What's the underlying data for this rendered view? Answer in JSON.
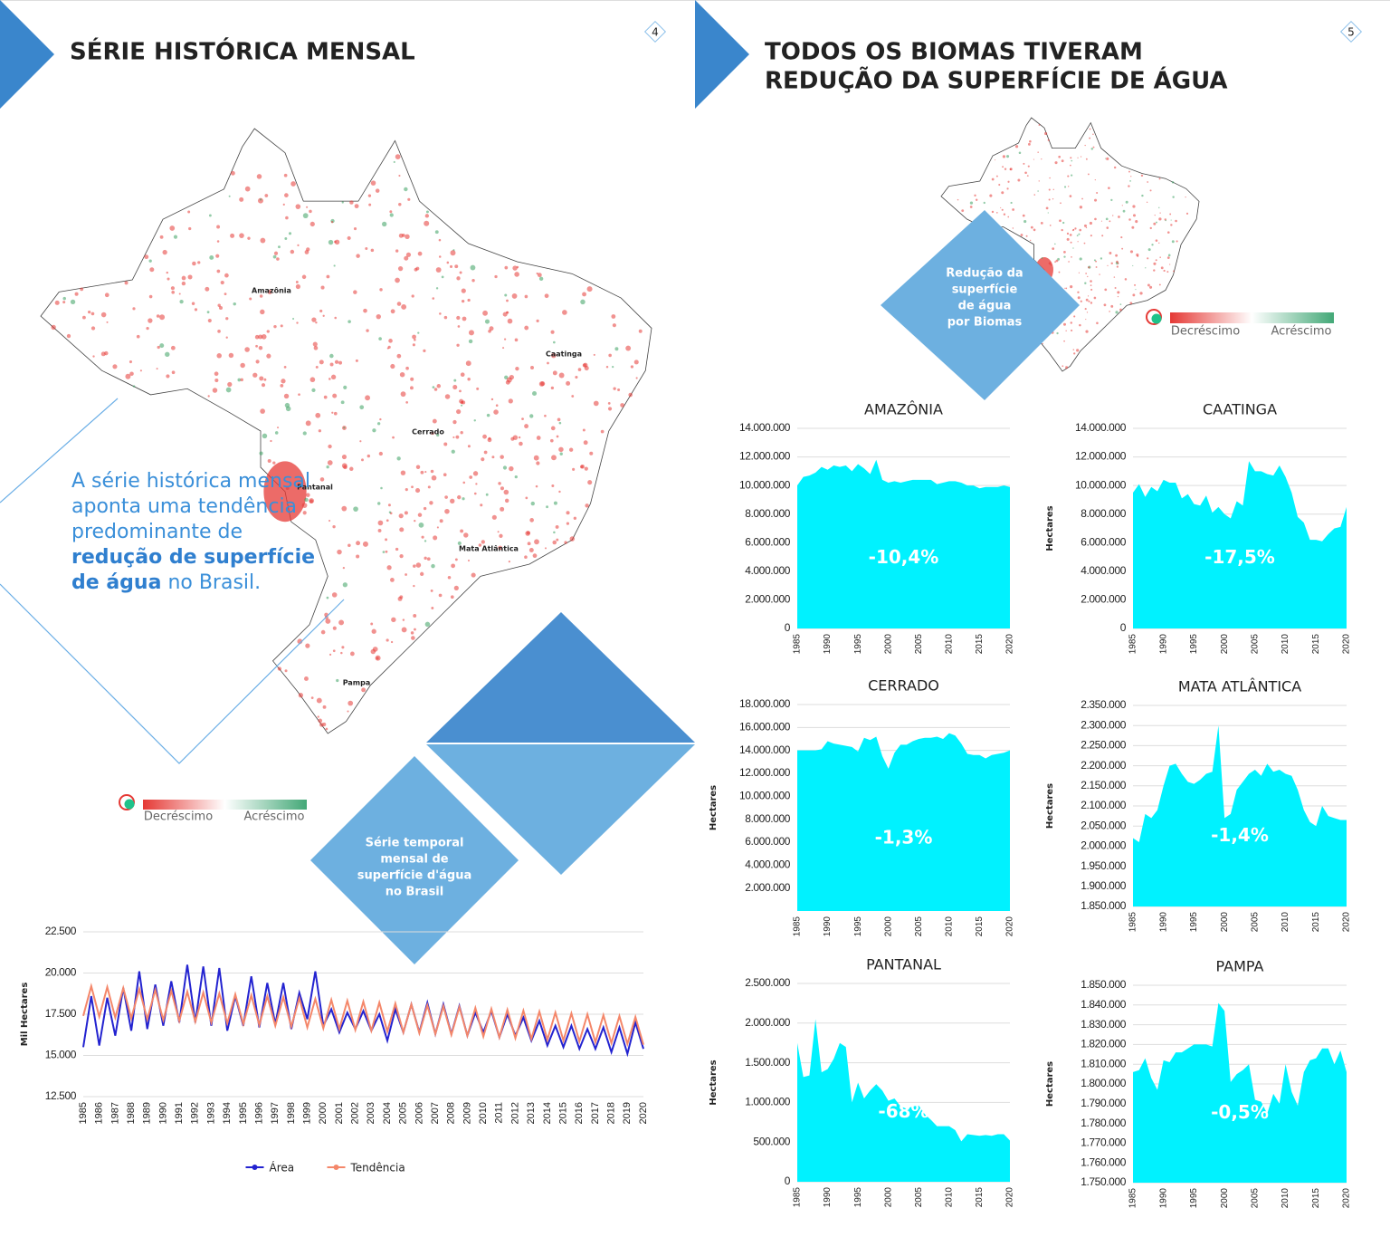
{
  "left_page": {
    "page_number": "4",
    "title": "SÉRIE HISTÓRICA MENSAL",
    "paragraph": [
      "A série histórica mensal aponta uma tendência predominante de",
      "redução de superfície de água",
      "no Brasil."
    ],
    "map_labels": [
      "Amazônia",
      "Caatinga",
      "Cerrado",
      "Pantanal",
      "Mata Atlântica",
      "Pampa"
    ],
    "legend": [
      "Decréscimo",
      "Acréscimo"
    ],
    "diamond_label": [
      "Série temporal",
      "mensal de",
      "superfície d'água",
      "no Brasil"
    ]
  },
  "right_page": {
    "page_number": "5",
    "title": [
      "TODOS OS BIOMAS TIVERAM",
      "REDUÇÃO DA SUPERFÍCIE DE ÁGUA"
    ],
    "diamond_label": [
      "Redução da",
      "superfície",
      "de água",
      "por Biomas"
    ],
    "legend": [
      "Decréscimo",
      "Acréscimo"
    ]
  },
  "chart_data": [
    {
      "type": "line",
      "y_label": "Mil Hectares",
      "categories": [
        "1985",
        null,
        "1986",
        null,
        "1987",
        null,
        "1988",
        null,
        "1989",
        null,
        "1990",
        null,
        "1991",
        null,
        "1992",
        null,
        "1993",
        null,
        "1994",
        null,
        "1995",
        null,
        "1996",
        null,
        "1997",
        null,
        "1998",
        null,
        "1999",
        null,
        "2000",
        null,
        "2001",
        null,
        "2002",
        null,
        "2003",
        null,
        "2004",
        null,
        "2005",
        null,
        "2006",
        null,
        "2007",
        null,
        "2008",
        null,
        "2009",
        null,
        "2010",
        null,
        "2011",
        null,
        "2012",
        null,
        "2013",
        null,
        "2014",
        null,
        "2015",
        null,
        "2016",
        null,
        "2017",
        null,
        "2018",
        null,
        "2019",
        null,
        "2020"
      ],
      "series": [
        {
          "name": "Área",
          "color": "#2323d0",
          "values": [
            15500,
            18600,
            15600,
            18500,
            16200,
            19100,
            16500,
            20100,
            16600,
            19300,
            16800,
            19500,
            17000,
            20500,
            17000,
            20400,
            16800,
            20300,
            16500,
            18600,
            16800,
            19800,
            16700,
            19400,
            16900,
            19400,
            16600,
            18800,
            17200,
            20100,
            16800,
            17800,
            16400,
            17600,
            16600,
            17700,
            16500,
            17500,
            15900,
            17800,
            16400,
            18100,
            16400,
            18200,
            16300,
            18100,
            16300,
            18000,
            16200,
            17600,
            16400,
            17700,
            16100,
            17500,
            16200,
            17300,
            15900,
            17100,
            15600,
            16800,
            15500,
            16800,
            15400,
            16600,
            15400,
            16700,
            15200,
            16700,
            15100,
            17000,
            15400
          ]
        },
        {
          "name": "Tendência",
          "color": "#f4876a",
          "values": [
            17400,
            19200,
            17350,
            19145,
            17300,
            19090,
            17250,
            19035,
            17200,
            18980,
            17150,
            18925,
            17100,
            18870,
            17050,
            18815,
            17000,
            18760,
            16950,
            18705,
            16900,
            18650,
            16850,
            18595,
            16800,
            18540,
            16750,
            18485,
            16700,
            18430,
            16650,
            18375,
            16600,
            18320,
            16550,
            18265,
            16500,
            18210,
            16450,
            18155,
            16400,
            18100,
            16350,
            18045,
            16300,
            17990,
            16250,
            17935,
            16200,
            17880,
            16150,
            17825,
            16100,
            17770,
            16050,
            17715,
            16000,
            17660,
            15950,
            17605,
            15900,
            17550,
            15850,
            17495,
            15800,
            17440,
            15750,
            17385,
            15700,
            17330,
            15650
          ]
        }
      ],
      "ylim": [
        12500,
        22500
      ],
      "yticks": [
        {
          "value": 12500,
          "label": "12.500"
        },
        {
          "value": 15000,
          "label": "15.000"
        },
        {
          "value": 17500,
          "label": "17.500"
        },
        {
          "value": 20000,
          "label": "20.000"
        },
        {
          "value": 22500,
          "label": "22.500"
        }
      ],
      "grid": true,
      "legend": "bottom"
    },
    {
      "type": "area",
      "title": "AMAZÔNIA",
      "annotation": "-10,4%",
      "color": "#00f2ff",
      "grid": true,
      "categories": [
        "1985",
        null,
        null,
        null,
        null,
        "1990",
        null,
        null,
        null,
        null,
        "1995",
        null,
        null,
        null,
        null,
        "2000",
        null,
        null,
        null,
        null,
        "2005",
        null,
        null,
        null,
        null,
        "2010",
        null,
        null,
        null,
        null,
        "2015",
        null,
        null,
        null,
        null,
        "2020"
      ],
      "values": [
        10000000,
        10600000,
        10700000,
        10900000,
        11300000,
        11100000,
        11400000,
        11300000,
        11400000,
        11000000,
        11500000,
        11200000,
        10800000,
        11800000,
        10400000,
        10200000,
        10300000,
        10200000,
        10300000,
        10400000,
        10400000,
        10400000,
        10400000,
        10100000,
        10200000,
        10300000,
        10300000,
        10200000,
        10000000,
        10000000,
        9800000,
        9900000,
        9900000,
        9900000,
        10000000,
        9900000
      ],
      "ylim": [
        0,
        14000000
      ],
      "yticks": [
        0,
        {
          "value": 2000000,
          "label": "2.000.000"
        },
        {
          "value": 4000000,
          "label": "4.000.000"
        },
        {
          "value": 6000000,
          "label": "6.000.000"
        },
        {
          "value": 8000000,
          "label": "8.000.000"
        },
        {
          "value": 10000000,
          "label": "10.000.000"
        },
        {
          "value": 12000000,
          "label": "12.000.000"
        },
        {
          "value": 14000000,
          "label": "14.000.000"
        }
      ]
    },
    {
      "type": "area",
      "title": "CAATINGA",
      "annotation": "-17,5%",
      "y_label": "Hectares",
      "color": "#00f2ff",
      "grid": true,
      "categories": [
        "1985",
        null,
        null,
        null,
        null,
        "1990",
        null,
        null,
        null,
        null,
        "1995",
        null,
        null,
        null,
        null,
        "2000",
        null,
        null,
        null,
        null,
        "2005",
        null,
        null,
        null,
        null,
        "2010",
        null,
        null,
        null,
        null,
        "2015",
        null,
        null,
        null,
        null,
        "2020"
      ],
      "values": [
        9500000,
        10100000,
        9200000,
        9900000,
        9600000,
        10400000,
        10200000,
        10200000,
        9100000,
        9400000,
        8700000,
        8600000,
        9300000,
        8100000,
        8500000,
        8000000,
        7700000,
        8900000,
        8600000,
        11700000,
        11000000,
        11000000,
        10800000,
        10700000,
        11400000,
        10600000,
        9500000,
        7800000,
        7400000,
        6200000,
        6200000,
        6100000,
        6600000,
        7000000,
        7100000,
        8500000
      ],
      "ylim": [
        0,
        14000000
      ],
      "yticks": [
        0,
        {
          "value": 2000000,
          "label": "2.000.000"
        },
        {
          "value": 4000000,
          "label": "4.000.000"
        },
        {
          "value": 6000000,
          "label": "6.000.000"
        },
        {
          "value": 8000000,
          "label": "8.000.000"
        },
        {
          "value": 10000000,
          "label": "10.000.000"
        },
        {
          "value": 12000000,
          "label": "12.000.000"
        },
        {
          "value": 14000000,
          "label": "14.000.000"
        }
      ]
    },
    {
      "type": "area",
      "title": "CERRADO",
      "annotation": "-1,3%",
      "y_label": "Hectares",
      "color": "#00f2ff",
      "grid": true,
      "categories": [
        "1985",
        null,
        null,
        null,
        null,
        "1990",
        null,
        null,
        null,
        null,
        "1995",
        null,
        null,
        null,
        null,
        "2000",
        null,
        null,
        null,
        null,
        "2005",
        null,
        null,
        null,
        null,
        "2010",
        null,
        null,
        null,
        null,
        "2015",
        null,
        null,
        null,
        null,
        "2020"
      ],
      "values": [
        14000000,
        14000000,
        14000000,
        14000000,
        14100000,
        14800000,
        14600000,
        14500000,
        14400000,
        14300000,
        13900000,
        15100000,
        14900000,
        15200000,
        13500000,
        12400000,
        13800000,
        14500000,
        14500000,
        14800000,
        15000000,
        15100000,
        15100000,
        15200000,
        15000000,
        15500000,
        15300000,
        14600000,
        13700000,
        13600000,
        13600000,
        13300000,
        13600000,
        13700000,
        13800000,
        14000000
      ],
      "ylim": [
        0,
        18000000
      ],
      "yticks": [
        {
          "value": 2000000,
          "label": "2.000.000"
        },
        {
          "value": 4000000,
          "label": "4.000.000"
        },
        {
          "value": 6000000,
          "label": "6.000.000"
        },
        {
          "value": 8000000,
          "label": "8.000.000"
        },
        {
          "value": 10000000,
          "label": "10.000.000"
        },
        {
          "value": 12000000,
          "label": "12.000.000"
        },
        {
          "value": 14000000,
          "label": "14.000.000"
        },
        {
          "value": 16000000,
          "label": "16.000.000"
        },
        {
          "value": 18000000,
          "label": "18.000.000"
        }
      ]
    },
    {
      "type": "area",
      "title": "MATA ATLÂNTICA",
      "annotation": "-1,4%",
      "y_label": "Hectares",
      "color": "#00f2ff",
      "grid": true,
      "categories": [
        "1985",
        null,
        null,
        null,
        null,
        "1990",
        null,
        null,
        null,
        null,
        "1995",
        null,
        null,
        null,
        null,
        "2000",
        null,
        null,
        null,
        null,
        "2005",
        null,
        null,
        null,
        null,
        "2010",
        null,
        null,
        null,
        null,
        "2015",
        null,
        null,
        null,
        null,
        "2020"
      ],
      "values": [
        2020000,
        2010000,
        2080000,
        2070000,
        2090000,
        2150000,
        2200000,
        2205000,
        2180000,
        2160000,
        2155000,
        2165000,
        2180000,
        2185000,
        2300000,
        2070000,
        2080000,
        2140000,
        2160000,
        2180000,
        2190000,
        2175000,
        2205000,
        2185000,
        2190000,
        2180000,
        2175000,
        2140000,
        2090000,
        2060000,
        2050000,
        2100000,
        2075000,
        2070000,
        2065000,
        2065000
      ],
      "ylim": [
        1850000,
        2350000
      ],
      "yticks": [
        {
          "value": 1850000,
          "label": "1.850.000"
        },
        {
          "value": 1900000,
          "label": "1.900.000"
        },
        {
          "value": 1950000,
          "label": "1.950.000"
        },
        {
          "value": 2000000,
          "label": "2.000.000"
        },
        {
          "value": 2050000,
          "label": "2.050.000"
        },
        {
          "value": 2100000,
          "label": "2.100.000"
        },
        {
          "value": 2150000,
          "label": "2.150.000"
        },
        {
          "value": 2200000,
          "label": "2.200.000"
        },
        {
          "value": 2250000,
          "label": "2.250.000"
        },
        {
          "value": 2300000,
          "label": "2.300.000"
        },
        {
          "value": 2350000,
          "label": "2.350.000"
        }
      ]
    },
    {
      "type": "area",
      "title": "PANTANAL",
      "annotation": "-68%",
      "y_label": "Hectares",
      "color": "#00f2ff",
      "grid": true,
      "categories": [
        "1985",
        null,
        null,
        null,
        null,
        "1990",
        null,
        null,
        null,
        null,
        "1995",
        null,
        null,
        null,
        null,
        "2000",
        null,
        null,
        null,
        null,
        "2005",
        null,
        null,
        null,
        null,
        "2010",
        null,
        null,
        null,
        null,
        "2015",
        null,
        null,
        null,
        null,
        "2020"
      ],
      "values": [
        1750000,
        1320000,
        1340000,
        2050000,
        1380000,
        1420000,
        1550000,
        1750000,
        1700000,
        1000000,
        1250000,
        1050000,
        1150000,
        1230000,
        1150000,
        1020000,
        1050000,
        950000,
        920000,
        950000,
        960000,
        850000,
        780000,
        700000,
        700000,
        700000,
        650000,
        510000,
        600000,
        590000,
        580000,
        590000,
        580000,
        600000,
        600000,
        520000
      ],
      "ylim": [
        0,
        2500000
      ],
      "yticks": [
        0,
        {
          "value": 500000,
          "label": "500.000"
        },
        {
          "value": 1000000,
          "label": "1.000.000"
        },
        {
          "value": 1500000,
          "label": "1.500.000"
        },
        {
          "value": 2000000,
          "label": "2.000.000"
        },
        {
          "value": 2500000,
          "label": "2.500.000"
        }
      ]
    },
    {
      "type": "area",
      "title": "PAMPA",
      "annotation": "-0,5%",
      "y_label": "Hectares",
      "color": "#00f2ff",
      "grid": true,
      "categories": [
        "1985",
        null,
        null,
        null,
        null,
        "1990",
        null,
        null,
        null,
        null,
        "1995",
        null,
        null,
        null,
        null,
        "2000",
        null,
        null,
        null,
        null,
        "2005",
        null,
        null,
        null,
        null,
        "2010",
        null,
        null,
        null,
        null,
        "2015",
        null,
        null,
        null,
        null,
        "2020"
      ],
      "values": [
        1806000,
        1807000,
        1813000,
        1803000,
        1797000,
        1812000,
        1811000,
        1816000,
        1816000,
        1818000,
        1820000,
        1820000,
        1820000,
        1819000,
        1841000,
        1837000,
        1801000,
        1805000,
        1807000,
        1810000,
        1792000,
        1791000,
        1785000,
        1795000,
        1790000,
        1810000,
        1796000,
        1789000,
        1806000,
        1812000,
        1813000,
        1818000,
        1818000,
        1810000,
        1817000,
        1806000
      ],
      "ylim": [
        1750000,
        1850000
      ],
      "yticks": [
        {
          "value": 1750000,
          "label": "1.750.000"
        },
        {
          "value": 1760000,
          "label": "1.760.000"
        },
        {
          "value": 1770000,
          "label": "1.770.000"
        },
        {
          "value": 1780000,
          "label": "1.780.000"
        },
        {
          "value": 1790000,
          "label": "1.790.000"
        },
        {
          "value": 1800000,
          "label": "1.800.000"
        },
        {
          "value": 1810000,
          "label": "1.810.000"
        },
        {
          "value": 1820000,
          "label": "1.820.000"
        },
        {
          "value": 1830000,
          "label": "1.830.000"
        },
        {
          "value": 1840000,
          "label": "1.840.000"
        },
        {
          "value": 1850000,
          "label": "1.850.000"
        }
      ]
    }
  ]
}
